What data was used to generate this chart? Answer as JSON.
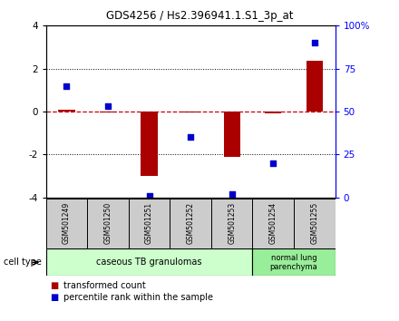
{
  "title": "GDS4256 / Hs2.396941.1.S1_3p_at",
  "samples": [
    "GSM501249",
    "GSM501250",
    "GSM501251",
    "GSM501252",
    "GSM501253",
    "GSM501254",
    "GSM501255"
  ],
  "transformed_counts": [
    0.1,
    -0.05,
    -3.0,
    -0.05,
    -2.1,
    -0.1,
    2.35
  ],
  "percentile_values": [
    65,
    53,
    1,
    35,
    2,
    20,
    90
  ],
  "ylim_left": [
    -4,
    4
  ],
  "ylim_right": [
    0,
    100
  ],
  "yticks_left": [
    -4,
    -2,
    0,
    2,
    4
  ],
  "yticks_right": [
    0,
    25,
    50,
    75,
    100
  ],
  "ytick_labels_right": [
    "0",
    "25",
    "50",
    "75",
    "100%"
  ],
  "bar_color": "#aa0000",
  "dot_color": "#0000cc",
  "zero_line_color": "#cc0000",
  "group1_label": "caseous TB granulomas",
  "group2_label": "normal lung\nparenchyma",
  "group1_bg": "#ccffcc",
  "group2_bg": "#99ee99",
  "cell_type_label": "cell type",
  "legend_bar_label": "transformed count",
  "legend_dot_label": "percentile rank within the sample",
  "sample_box_bg": "#cccccc",
  "bar_width": 0.4
}
